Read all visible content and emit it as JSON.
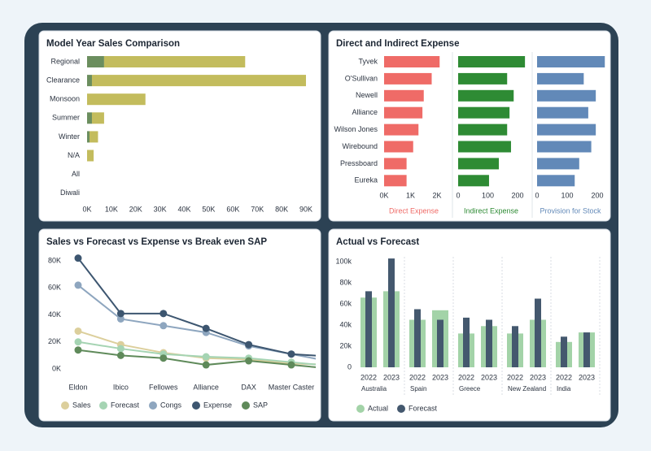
{
  "chart_data": [
    {
      "type": "stackedbar",
      "title": "Model Year Sales Comparison",
      "categories": [
        "Regional",
        "Clearance",
        "Monsoon",
        "Summer",
        "Winter",
        "N/A",
        "All",
        "Diwali"
      ],
      "series": [
        {
          "color": "#6b8e5e",
          "values": [
            7000,
            2000,
            0,
            2000,
            1000,
            0,
            0,
            0
          ]
        },
        {
          "color": "#c3bc5d",
          "values": [
            58000,
            88000,
            24000,
            5000,
            3500,
            2700,
            0,
            0
          ]
        }
      ],
      "xlim": [
        0,
        90000
      ],
      "xticks": [
        {
          "value": 0,
          "label": "0K"
        },
        {
          "value": 10000,
          "label": "10K"
        },
        {
          "value": 20000,
          "label": "20K"
        },
        {
          "value": 30000,
          "label": "30K"
        },
        {
          "value": 40000,
          "label": "40K"
        },
        {
          "value": 50000,
          "label": "50K"
        },
        {
          "value": 60000,
          "label": "60K"
        },
        {
          "value": 70000,
          "label": "70K"
        },
        {
          "value": 80000,
          "label": "80K"
        },
        {
          "value": 90000,
          "label": "90K"
        }
      ]
    },
    {
      "type": "panels",
      "title": "Direct and Indirect Expense",
      "categories": [
        "Tyvek",
        "O'Sullivan",
        "Newell",
        "Alliance",
        "Wilson Jones",
        "Wirebound",
        "Pressboard",
        "Eureka"
      ],
      "series": [
        {
          "name": "Direct Expense",
          "color": "#ef6b67",
          "values": [
            2100,
            1800,
            1500,
            1450,
            1300,
            1100,
            850,
            850
          ],
          "xlim": [
            0,
            2000
          ],
          "xticks": [
            {
              "value": 0,
              "label": "0K"
            },
            {
              "value": 1000,
              "label": "1K"
            },
            {
              "value": 2000,
              "label": "2K"
            }
          ]
        },
        {
          "name": "Indirect Expense",
          "color": "#2e8b34",
          "values": [
            225,
            165,
            187,
            173,
            165,
            178,
            137,
            104
          ],
          "xlim": [
            0,
            200
          ],
          "xticks": [
            0,
            100,
            200
          ]
        },
        {
          "name": "Provision for Stock",
          "color": "#6289b8",
          "values": [
            225,
            155,
            195,
            170,
            195,
            180,
            140,
            125
          ],
          "xlim": [
            0,
            200
          ],
          "xticks": [
            0,
            100,
            200
          ]
        }
      ]
    },
    {
      "type": "line",
      "title": "Sales vs Forecast vs Expense vs Break even SAP",
      "categories": [
        "Eldon",
        "Ibico",
        "Fellowes",
        "Alliance",
        "DAX",
        "Master Caster",
        null
      ],
      "series": [
        {
          "name": "Sales",
          "color": "#dccf9c",
          "values": [
            28000,
            18000,
            12000,
            8000,
            7000,
            4000,
            3000
          ]
        },
        {
          "name": "Forecast",
          "color": "#a5d4b3",
          "values": [
            20000,
            15000,
            11000,
            9000,
            8000,
            5000,
            2000
          ]
        },
        {
          "name": "Congs",
          "color": "#8ea6bf",
          "values": [
            62000,
            37000,
            32000,
            27000,
            17000,
            11000,
            5000
          ]
        },
        {
          "name": "Expense",
          "color": "#3d5670",
          "values": [
            82000,
            41000,
            41000,
            30000,
            18000,
            11000,
            9000
          ]
        },
        {
          "name": "SAP",
          "color": "#5f8a5a",
          "values": [
            14000,
            10000,
            8000,
            3000,
            6000,
            3000,
            0
          ]
        }
      ],
      "ylim": [
        0,
        80000
      ],
      "yticks": [
        {
          "value": 0,
          "label": "0K"
        },
        {
          "value": 20000,
          "label": "20K"
        },
        {
          "value": 40000,
          "label": "40K"
        },
        {
          "value": 60000,
          "label": "60K"
        },
        {
          "value": 80000,
          "label": "80K"
        }
      ]
    },
    {
      "type": "groupedbar",
      "title": "Actual vs Forecast",
      "groups": [
        "Australia",
        "Spain",
        "Greece",
        "New Zealand",
        "India"
      ],
      "categories": [
        "2022",
        "2023",
        "2022",
        "2023",
        "2022",
        "2023",
        "2022",
        "2023",
        "2022",
        "2023"
      ],
      "series": [
        {
          "name": "Actual",
          "color": "#a3d3a8",
          "values": [
            66,
            72,
            45,
            54,
            32,
            39,
            32,
            45,
            24,
            33
          ]
        },
        {
          "name": "Forecast",
          "color": "#44586e",
          "values": [
            72,
            103,
            55,
            45,
            47,
            45,
            39,
            65,
            29,
            33
          ]
        }
      ],
      "ylim": [
        0,
        105
      ],
      "yticks": [
        0,
        {
          "value": 20,
          "label": "20k"
        },
        {
          "value": 40,
          "label": "40k"
        },
        {
          "value": 60,
          "label": "60k"
        },
        {
          "value": 80,
          "label": "80k"
        },
        {
          "value": 100,
          "label": "100k"
        }
      ]
    }
  ]
}
